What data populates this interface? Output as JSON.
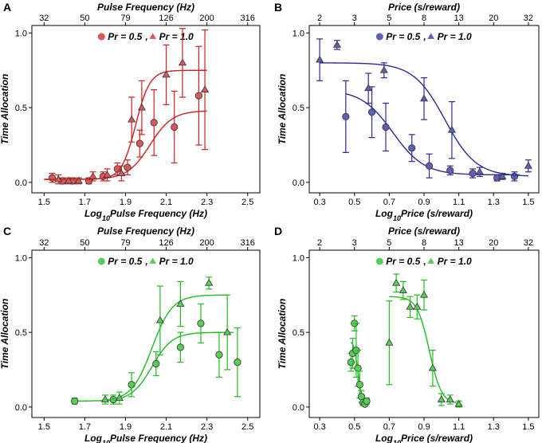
{
  "chart_data": [
    {
      "panel_label": "A",
      "type": "scatter",
      "color": "#cc2222",
      "top_axis": {
        "label": "Pulse Frequency (Hz)",
        "ticks": [
          "32",
          "50",
          "79",
          "126",
          "200",
          "316"
        ],
        "tick_positions": [
          1.5,
          1.7,
          1.9,
          2.1,
          2.3,
          2.5
        ]
      },
      "xlabel_prefix": "Log",
      "xlabel_sub": "10",
      "xlabel_suffix": "Pulse Frequency (Hz)",
      "ylabel": "Time Allocation",
      "xlim": [
        1.44,
        2.56
      ],
      "ylim": [
        -0.07,
        1.05
      ],
      "xticks": [
        "1.5",
        "1.7",
        "1.9",
        "2.1",
        "2.3",
        "2.5"
      ],
      "xtick_values": [
        1.5,
        1.7,
        1.9,
        2.1,
        2.3,
        2.5
      ],
      "yticks": [
        "0.0",
        "0.5",
        "1.0"
      ],
      "ytick_values": [
        0,
        0.5,
        1
      ],
      "legend": {
        "circle": "Pr = 0.5",
        "sep": ",",
        "triangle": "Pr = 1.0"
      },
      "series": [
        {
          "name": "Pr = 0.5",
          "marker": "circle",
          "x": [
            1.54,
            1.59,
            1.64,
            1.72,
            1.79,
            1.86,
            1.91,
            1.97,
            2.04,
            2.14,
            2.26
          ],
          "y": [
            0.03,
            0.01,
            0.01,
            0.01,
            0.04,
            0.09,
            0.1,
            0.26,
            0.4,
            0.37,
            0.58
          ],
          "err": [
            0.03,
            0.02,
            0.02,
            0.02,
            0.03,
            0.04,
            0.05,
            0.09,
            0.22,
            0.24,
            0.33
          ],
          "fit_x": [
            1.5,
            2.3
          ],
          "fit": {
            "base": 0.02,
            "top": 0.48,
            "x50": 2.02,
            "slope": 0.055
          }
        },
        {
          "name": "Pr = 1.0",
          "marker": "triangle",
          "x": [
            1.57,
            1.62,
            1.67,
            1.74,
            1.81,
            1.88,
            1.93,
            1.98,
            2.1,
            2.18,
            2.29
          ],
          "y": [
            0.02,
            0.01,
            0.01,
            0.04,
            0.05,
            0.06,
            0.42,
            0.5,
            0.72,
            0.8,
            0.62
          ],
          "err": [
            0.03,
            0.02,
            0.02,
            0.03,
            0.04,
            0.05,
            0.15,
            0.18,
            0.2,
            0.23,
            0.4
          ],
          "fit_x": [
            1.5,
            2.3
          ],
          "fit": {
            "base": 0.02,
            "top": 0.75,
            "x50": 1.95,
            "slope": 0.035
          }
        }
      ]
    },
    {
      "panel_label": "B",
      "type": "scatter",
      "color": "#2a2a9a",
      "top_axis": {
        "label": "Price (s/reward)",
        "ticks": [
          "2",
          "3",
          "5",
          "8",
          "13",
          "20",
          "32"
        ],
        "tick_positions": [
          0.3,
          0.5,
          0.7,
          0.9,
          1.1,
          1.3,
          1.5
        ]
      },
      "xlabel_prefix": "Log",
      "xlabel_sub": "10",
      "xlabel_suffix": "Price (s/reward)",
      "ylabel": "Time Allocation",
      "xlim": [
        0.24,
        1.56
      ],
      "ylim": [
        -0.07,
        1.05
      ],
      "xticks": [
        "0.3",
        "0.5",
        "0.7",
        "0.9",
        "1.1",
        "1.3",
        "1.5"
      ],
      "xtick_values": [
        0.3,
        0.5,
        0.7,
        0.9,
        1.1,
        1.3,
        1.5
      ],
      "yticks": [
        "0.0",
        "0.5",
        "1.0"
      ],
      "ytick_values": [
        0,
        0.5,
        1
      ],
      "legend": {
        "circle": "Pr = 0.5",
        "sep": ",",
        "triangle": "Pr = 1.0"
      },
      "series": [
        {
          "name": "Pr = 0.5",
          "marker": "circle",
          "x": [
            0.45,
            0.6,
            0.68,
            0.83,
            0.93,
            1.05,
            1.18,
            1.32,
            1.42
          ],
          "y": [
            0.44,
            0.47,
            0.37,
            0.23,
            0.11,
            0.08,
            0.06,
            0.03,
            0.04
          ],
          "err": [
            0.24,
            0.17,
            0.16,
            0.09,
            0.08,
            0.03,
            0.03,
            0.02,
            0.03
          ],
          "fit_x": [
            0.45,
            1.45
          ],
          "fit": {
            "base": 0.05,
            "top": 0.62,
            "x50": 0.72,
            "slope": -0.09
          }
        },
        {
          "name": "Pr = 1.0",
          "marker": "triangle",
          "x": [
            0.3,
            0.4,
            0.58,
            0.67,
            0.9,
            1.06,
            1.22,
            1.35,
            1.5
          ],
          "y": [
            0.82,
            0.92,
            0.63,
            0.75,
            0.56,
            0.35,
            0.07,
            0.04,
            0.11
          ],
          "err": [
            0.14,
            0.03,
            0.1,
            0.05,
            0.14,
            0.19,
            0.03,
            0.02,
            0.04
          ],
          "fit_x": [
            0.3,
            1.5
          ],
          "fit": {
            "base": 0.04,
            "top": 0.8,
            "x50": 1.02,
            "slope": -0.09
          }
        }
      ]
    },
    {
      "panel_label": "C",
      "type": "scatter",
      "color": "#22bb22",
      "top_axis": {
        "label": "Pulse Frequency (Hz)",
        "ticks": [
          "32",
          "50",
          "79",
          "126",
          "200",
          "316"
        ],
        "tick_positions": [
          1.5,
          1.7,
          1.9,
          2.1,
          2.3,
          2.5
        ]
      },
      "xlabel_prefix": "Log",
      "xlabel_sub": "10",
      "xlabel_suffix": "Pulse Frequency (Hz)",
      "ylabel": "Time Allocation",
      "xlim": [
        1.44,
        2.56
      ],
      "ylim": [
        -0.07,
        1.05
      ],
      "xticks": [
        "1.5",
        "1.7",
        "1.9",
        "2.1",
        "2.3",
        "2.5"
      ],
      "xtick_values": [
        1.5,
        1.7,
        1.9,
        2.1,
        2.3,
        2.5
      ],
      "yticks": [
        "0.0",
        "0.5",
        "1.0"
      ],
      "ytick_values": [
        0,
        0.5,
        1
      ],
      "legend": {
        "circle": "Pr = 0.5",
        "sep": ",",
        "triangle": "Pr = 1.0"
      },
      "series": [
        {
          "name": "Pr = 0.5",
          "marker": "circle",
          "x": [
            1.65,
            1.84,
            1.93,
            2.05,
            2.17,
            2.27,
            2.36,
            2.45
          ],
          "y": [
            0.04,
            0.05,
            0.15,
            0.29,
            0.4,
            0.56,
            0.35,
            0.3
          ],
          "err": [
            0.02,
            0.03,
            0.08,
            0.08,
            0.1,
            0.13,
            0.15,
            0.23
          ],
          "fit_x": [
            1.65,
            2.43
          ],
          "fit": {
            "base": 0.04,
            "top": 0.5,
            "x50": 2.03,
            "slope": 0.05
          }
        },
        {
          "name": "Pr = 1.0",
          "marker": "triangle",
          "x": [
            1.8,
            1.87,
            2.07,
            2.17,
            2.31,
            2.4
          ],
          "y": [
            0.05,
            0.06,
            0.58,
            0.69,
            0.83,
            0.5
          ],
          "err": [
            0.03,
            0.04,
            0.23,
            0.15,
            0.04,
            0.25
          ],
          "fit_x": [
            1.8,
            2.4
          ],
          "fit": {
            "base": 0.04,
            "top": 0.75,
            "x50": 2.03,
            "slope": 0.05
          }
        }
      ]
    },
    {
      "panel_label": "D",
      "type": "scatter",
      "color": "#22bb22",
      "top_axis": {
        "label": "Price (s/reward)",
        "ticks": [
          "2",
          "3",
          "5",
          "8",
          "13",
          "20",
          "32"
        ],
        "tick_positions": [
          0.3,
          0.5,
          0.7,
          0.9,
          1.1,
          1.3,
          1.5
        ]
      },
      "xlabel_prefix": "Log",
      "xlabel_sub": "10",
      "xlabel_suffix": "Price (s/reward)",
      "ylabel": "Time Allocation",
      "xlim": [
        0.24,
        1.56
      ],
      "ylim": [
        -0.07,
        1.05
      ],
      "xticks": [
        "0.3",
        "0.5",
        "0.7",
        "0.9",
        "1.1",
        "1.3",
        "1.5"
      ],
      "xtick_values": [
        0.3,
        0.5,
        0.7,
        0.9,
        1.1,
        1.3,
        1.5
      ],
      "yticks": [
        "0.0",
        "0.5",
        "1.0"
      ],
      "ytick_values": [
        0,
        0.5,
        1
      ],
      "legend": {
        "circle": "Pr = 0.5",
        "sep": ",",
        "triangle": "Pr = 1.0"
      },
      "series": [
        {
          "name": "Pr = 0.5",
          "marker": "circle",
          "x": [
            0.48,
            0.49,
            0.5,
            0.51,
            0.52,
            0.53,
            0.54,
            0.55,
            0.56,
            0.57
          ],
          "y": [
            0.3,
            0.36,
            0.56,
            0.38,
            0.26,
            0.15,
            0.07,
            0.03,
            0.02,
            0.04
          ],
          "err": [
            0.06,
            0.1,
            0.05,
            0.18,
            0.12,
            0.09,
            0.04,
            0.02,
            0.01,
            0.02
          ],
          "fit_x": [
            0.48,
            0.58
          ],
          "fit": {
            "base": 0.02,
            "top": 0.45,
            "x50": 0.52,
            "slope": -0.012
          }
        },
        {
          "name": "Pr = 1.0",
          "marker": "triangle",
          "x": [
            0.7,
            0.74,
            0.78,
            0.82,
            0.86,
            0.9,
            0.95,
            1.0,
            1.05,
            1.1
          ],
          "y": [
            0.43,
            0.83,
            0.78,
            0.67,
            0.67,
            0.75,
            0.26,
            0.05,
            0.05,
            0.02
          ],
          "err": [
            0.28,
            0.06,
            0.06,
            0.07,
            0.08,
            0.1,
            0.12,
            0.04,
            0.03,
            0.02
          ],
          "fit_x": [
            0.7,
            1.1
          ],
          "fit": {
            "base": 0.02,
            "top": 0.74,
            "x50": 0.93,
            "slope": -0.035
          }
        }
      ]
    }
  ]
}
